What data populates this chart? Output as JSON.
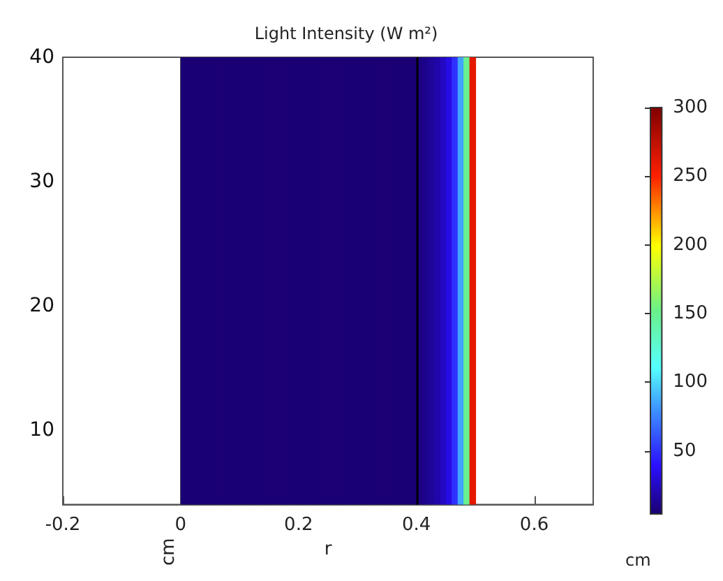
{
  "chart_data": {
    "type": "heatmap",
    "title": "Light Intensity (W m²)",
    "xlabel": "r",
    "ylabel": "cm",
    "annotations": [
      "cm"
    ],
    "x": [
      -0.195,
      -0.185,
      -0.175,
      -0.165,
      -0.155,
      -0.145,
      -0.135,
      -0.125,
      -0.115,
      -0.105,
      -0.095,
      -0.085,
      -0.075,
      -0.065,
      -0.055,
      -0.045,
      -0.035,
      -0.025,
      -0.015,
      -0.005,
      0.005,
      0.015,
      0.025,
      0.035,
      0.045,
      0.055,
      0.065,
      0.075,
      0.085,
      0.095,
      0.105,
      0.115,
      0.125,
      0.135,
      0.145,
      0.155,
      0.165,
      0.175,
      0.185,
      0.195,
      0.205,
      0.215,
      0.225,
      0.235,
      0.245,
      0.255,
      0.265,
      0.275,
      0.285,
      0.295,
      0.305,
      0.315,
      0.325,
      0.335,
      0.345,
      0.355,
      0.365,
      0.375,
      0.385,
      0.395,
      0.405,
      0.415,
      0.425,
      0.435,
      0.445,
      0.455,
      0.465,
      0.475,
      0.485,
      0.495,
      0.505,
      0.515,
      0.525,
      0.535,
      0.545,
      0.555,
      0.565,
      0.575,
      0.585,
      0.595,
      0.605,
      0.615,
      0.625,
      0.635,
      0.645,
      0.655,
      0.665,
      0.675,
      0.685,
      0.695
    ],
    "cells": [
      [
        null,
        null,
        null,
        null,
        null,
        null,
        null,
        null,
        null,
        null,
        null,
        null,
        null,
        null,
        null,
        null,
        null,
        null,
        null,
        null,
        5,
        5,
        5,
        5,
        5,
        5,
        5,
        5,
        5,
        5,
        5,
        5,
        5,
        5,
        5,
        5,
        5,
        5,
        5,
        5,
        5,
        5,
        5,
        5,
        5,
        5,
        5,
        5,
        5,
        5,
        5,
        5,
        5,
        5,
        5,
        5,
        5,
        5,
        5,
        5,
        8,
        11,
        14,
        18,
        24,
        33,
        50,
        85,
        150,
        260,
        null,
        null,
        null,
        null,
        null,
        null,
        null,
        null,
        null,
        null,
        null,
        null,
        null,
        null,
        null,
        null,
        null,
        null,
        null,
        null
      ]
    ],
    "clim": [
      4,
      300
    ],
    "cticks": [
      50,
      100,
      150,
      200,
      250,
      300
    ],
    "xlim": [
      -0.2,
      0.7
    ],
    "xticks": [
      -0.2,
      0,
      0.2,
      0.4,
      0.6
    ],
    "ylim": [
      4,
      40
    ],
    "yticks": [
      10,
      20,
      30,
      40
    ],
    "ref_lines": [
      {
        "axis": "x",
        "value": 0.4,
        "color": "#000000"
      }
    ]
  }
}
